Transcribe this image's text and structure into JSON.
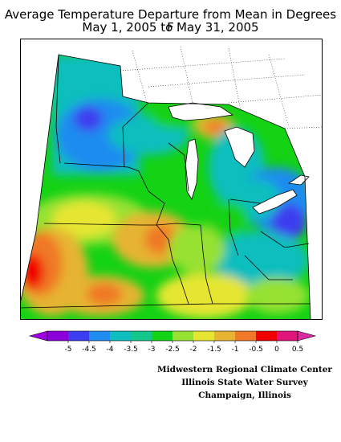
{
  "title": {
    "line1": "Average Temperature Departure from Mean in Degrees F",
    "line2": "May 1, 2005 to May 31, 2005"
  },
  "legend": {
    "tick_labels": [
      "-5",
      "-4.5",
      "-4",
      "-3.5",
      "-3",
      "-2.5",
      "-2",
      "-1.5",
      "-1",
      "-0.5",
      "0",
      "0.5"
    ],
    "bin_colors": [
      "#8c00dc",
      "#3c3cf0",
      "#1e8cf0",
      "#0fbebe",
      "#14c88c",
      "#14d214",
      "#96e132",
      "#e6e632",
      "#e6b432",
      "#f07828",
      "#f00000",
      "#e0147a"
    ],
    "low_arrow_color": "#a000e6",
    "high_arrow_color": "#dc2aa0"
  },
  "credits": {
    "line1": "Midwestern Regional Climate Center",
    "line2": "Illinois State Water Survey",
    "line3": "Champaign, Illinois"
  }
}
